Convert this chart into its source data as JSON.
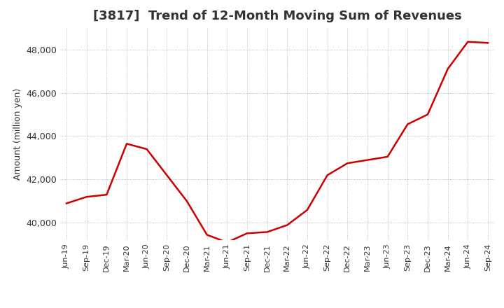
{
  "title": "[3817]  Trend of 12-Month Moving Sum of Revenues",
  "ylabel": "Amount (million yen)",
  "line_color": "#cc0000",
  "line_width": 1.8,
  "background_color": "#ffffff",
  "plot_bg_color": "#ffffff",
  "grid_color": "#aaaaaa",
  "ylim": [
    39200,
    49000
  ],
  "yticks": [
    40000,
    42000,
    44000,
    46000,
    48000
  ],
  "x_labels": [
    "Jun-19",
    "Sep-19",
    "Dec-19",
    "Mar-20",
    "Jun-20",
    "Sep-20",
    "Dec-20",
    "Mar-21",
    "Jun-21",
    "Sep-21",
    "Dec-21",
    "Mar-22",
    "Jun-22",
    "Sep-22",
    "Dec-22",
    "Mar-23",
    "Jun-23",
    "Sep-23",
    "Dec-23",
    "Mar-24",
    "Jun-24",
    "Sep-24"
  ],
  "data": {
    "Jun-19": 40900,
    "Sep-19": 41200,
    "Dec-19": 41300,
    "Mar-20": 43650,
    "Jun-20": 43400,
    "Sep-20": 42200,
    "Dec-20": 41000,
    "Mar-21": 39450,
    "Jun-21": 39100,
    "Sep-21": 39520,
    "Dec-21": 39580,
    "Mar-22": 39900,
    "Jun-22": 40600,
    "Sep-22": 42200,
    "Dec-22": 42750,
    "Mar-23": 42900,
    "Jun-23": 43050,
    "Sep-23": 44550,
    "Dec-23": 45000,
    "Mar-24": 47100,
    "Jun-24": 48350,
    "Sep-24": 48300
  },
  "title_fontsize": 13,
  "ylabel_fontsize": 9,
  "tick_fontsize": 9,
  "xtick_fontsize": 8
}
